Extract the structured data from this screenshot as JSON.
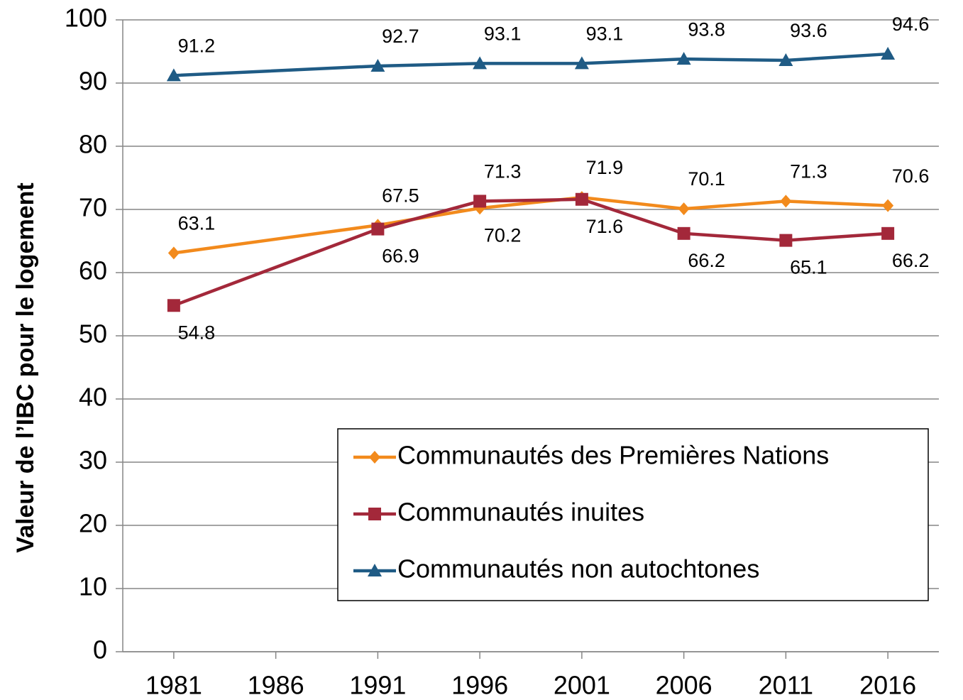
{
  "chart_data": {
    "type": "line",
    "ylabel": "Valeur de l’IBC pour le logement",
    "x": [
      1981,
      1991,
      1996,
      2001,
      2006,
      2011,
      2016
    ],
    "xlim": [
      1978.5,
      2018.5
    ],
    "xticks": [
      1981,
      1986,
      1991,
      1996,
      2001,
      2006,
      2011,
      2016
    ],
    "ylim": [
      0,
      100
    ],
    "yticks": [
      0,
      10,
      20,
      30,
      40,
      50,
      60,
      70,
      80,
      90,
      100
    ],
    "grid": true,
    "legend": "lower right",
    "series": [
      {
        "name": "Communautés des Premières Nations",
        "color": "#f28a1c",
        "marker": "diamond",
        "values": [
          63.1,
          67.5,
          70.2,
          71.9,
          70.1,
          71.3,
          70.6
        ]
      },
      {
        "name": "Communautés inuites",
        "color": "#a3283a",
        "marker": "square",
        "values": [
          54.8,
          66.9,
          71.3,
          71.6,
          66.2,
          65.1,
          66.2
        ]
      },
      {
        "name": "Communautés non autochtones",
        "color": "#1f5b85",
        "marker": "triangle",
        "values": [
          91.2,
          92.7,
          93.1,
          93.1,
          93.8,
          93.6,
          94.6
        ]
      }
    ]
  }
}
